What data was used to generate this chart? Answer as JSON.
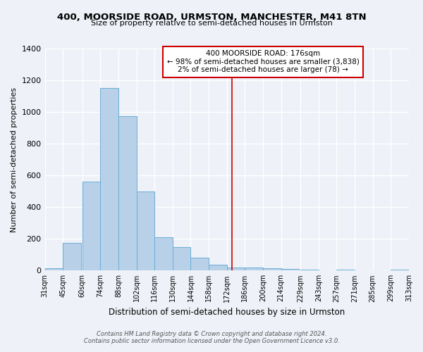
{
  "title": "400, MOORSIDE ROAD, URMSTON, MANCHESTER, M41 8TN",
  "subtitle": "Size of property relative to semi-detached houses in Urmston",
  "bar_color": "#b8d0e8",
  "bar_edge_color": "#6aaed6",
  "background_color": "#eef2f8",
  "bin_labels": [
    "31sqm",
    "45sqm",
    "60sqm",
    "74sqm",
    "88sqm",
    "102sqm",
    "116sqm",
    "130sqm",
    "144sqm",
    "158sqm",
    "172sqm",
    "186sqm",
    "200sqm",
    "214sqm",
    "229sqm",
    "243sqm",
    "257sqm",
    "271sqm",
    "285sqm",
    "299sqm",
    "313sqm"
  ],
  "bin_edges": [
    31,
    45,
    60,
    74,
    88,
    102,
    116,
    130,
    144,
    158,
    172,
    186,
    200,
    214,
    229,
    243,
    257,
    271,
    285,
    299,
    313
  ],
  "bar_heights": [
    15,
    175,
    560,
    1150,
    975,
    500,
    210,
    148,
    80,
    38,
    20,
    20,
    15,
    10,
    5,
    0,
    5,
    0,
    0,
    5
  ],
  "ylabel": "Number of semi-detached properties",
  "xlabel": "Distribution of semi-detached houses by size in Urmston",
  "vline_x": 176,
  "vline_color": "#cc0000",
  "annotation_title": "400 MOORSIDE ROAD: 176sqm",
  "annotation_line1": "← 98% of semi-detached houses are smaller (3,838)",
  "annotation_line2": "2% of semi-detached houses are larger (78) →",
  "footer1": "Contains HM Land Registry data © Crown copyright and database right 2024.",
  "footer2": "Contains public sector information licensed under the Open Government Licence v3.0.",
  "ylim": [
    0,
    1400
  ],
  "yticks": [
    0,
    200,
    400,
    600,
    800,
    1000,
    1200,
    1400
  ]
}
